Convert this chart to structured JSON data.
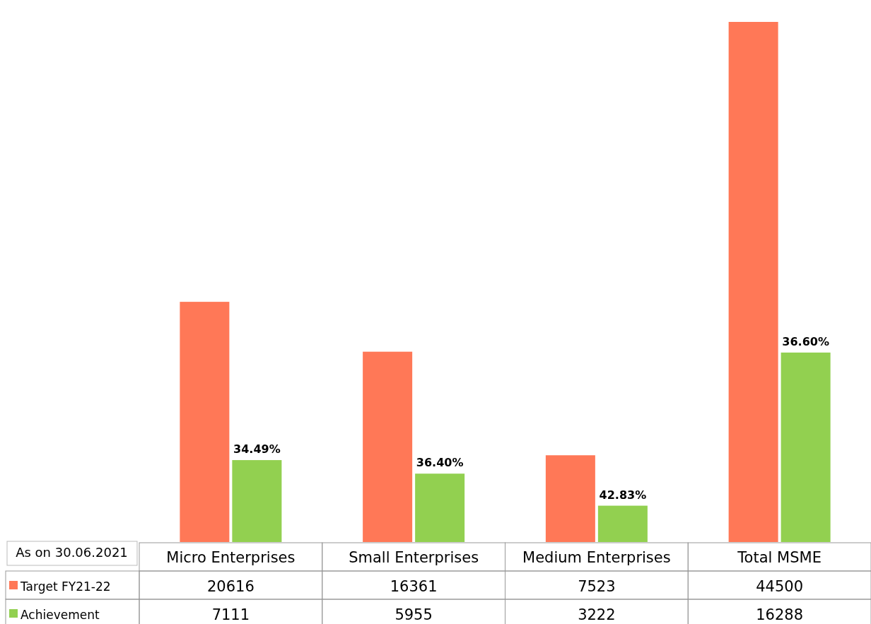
{
  "chart_data": {
    "type": "bar",
    "categories": [
      "Micro Enterprises",
      "Small Enterprises",
      "Medium Enterprises",
      "Total MSME"
    ],
    "series": [
      {
        "name": "Target FY21-22",
        "color": "#ff7857",
        "values": [
          20616,
          16361,
          7523,
          44500
        ]
      },
      {
        "name": "Achievement",
        "color": "#92d050",
        "values": [
          7111,
          5955,
          3222,
          16288
        ]
      }
    ],
    "data_labels": true,
    "legend": "bottom left",
    "annotations": [
      "As on 30.06.2021",
      {
        "text": "34.49%",
        "x": "Micro Enterprises",
        "y": 7111
      },
      {
        "text": "36.40%",
        "x": "Small Enterprises",
        "y": 5955
      },
      {
        "text": "42.83%",
        "x": "Medium Enterprises",
        "y": 3222
      },
      {
        "text": "36.60%",
        "x": "Total MSME",
        "y": 16288
      }
    ]
  }
}
